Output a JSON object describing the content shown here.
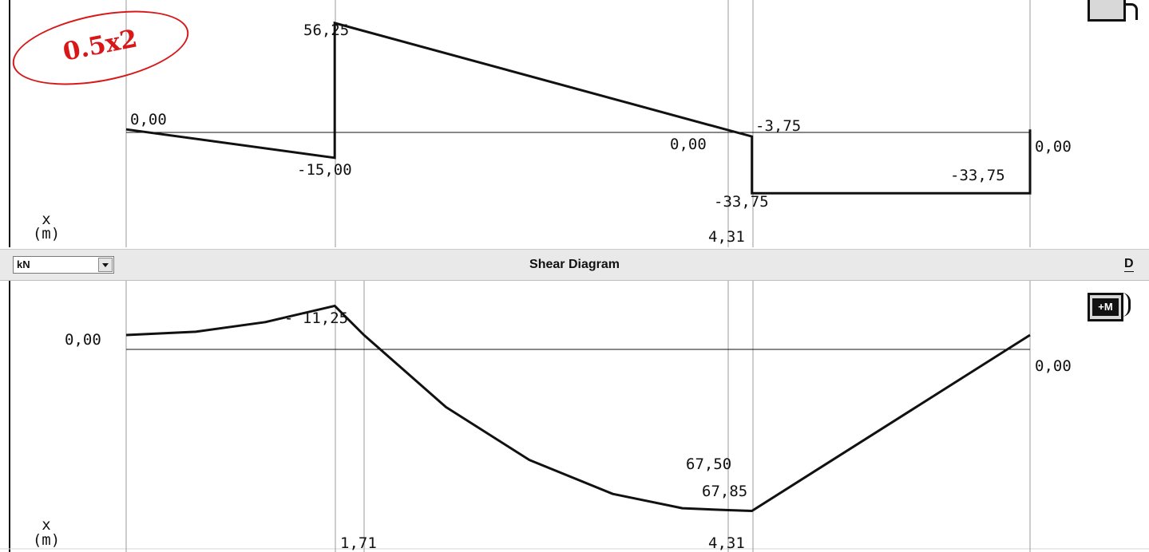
{
  "annotation": {
    "text": "0.5x2",
    "color": "#d81818"
  },
  "toolbar": {
    "unit_value": "kN",
    "dropdown_icon": "chevron-down-icon",
    "title": "Shear Diagram",
    "right_button_label": "D"
  },
  "mode_buttons": {
    "top_icon": "diagram-mode-icon",
    "bottom_label": "+M",
    "bottom_icon": "moment-diagram-icon"
  },
  "top_plot": {
    "axis_label_x": "x",
    "axis_label_unit": "(m)",
    "labels": {
      "left_zero": "0,00",
      "peak": "56,25",
      "dip": "-15,00",
      "cross_zero": "0,00",
      "small_drop": "-3,75",
      "drop_low": "-33,75",
      "right_low": "-33,75",
      "right_zero": "0,00",
      "x_mark": "4,31"
    }
  },
  "bottom_plot": {
    "axis_label_x": "x",
    "axis_label_unit": "(m)",
    "labels": {
      "left_zero": "0,00",
      "peak": "- 11,25",
      "right_zero": "0,00",
      "min_upper": "67,50",
      "min_lower": "67,85",
      "x_mark_1": "1,71",
      "x_mark_2": "4,31"
    }
  },
  "chart_data": [
    {
      "type": "line",
      "points": [
        {
          "x": 0,
          "y": 0
        },
        {
          "x": 1.5,
          "y": -15.0
        },
        {
          "x": 1.5,
          "y": 56.25
        },
        {
          "x": 4.31,
          "y": 0.0
        },
        {
          "x": 4.5,
          "y": -3.75
        },
        {
          "x": 4.5,
          "y": -33.75
        },
        {
          "x": 6.5,
          "y": -33.75
        },
        {
          "x": 6.5,
          "y": 0.0
        }
      ],
      "ylim": [
        -40,
        60
      ]
    },
    {
      "type": "line",
      "title": "Shear Diagram",
      "points": [
        {
          "x": 0,
          "y": 0.0
        },
        {
          "x": 0.5,
          "y": -1.25
        },
        {
          "x": 1.0,
          "y": -5.0
        },
        {
          "x": 1.5,
          "y": -11.25
        },
        {
          "x": 1.71,
          "y": 0.0
        },
        {
          "x": 2.3,
          "y": 27.8
        },
        {
          "x": 2.9,
          "y": 48.2
        },
        {
          "x": 3.5,
          "y": 61.3
        },
        {
          "x": 4.0,
          "y": 66.8
        },
        {
          "x": 4.31,
          "y": 67.5
        },
        {
          "x": 4.5,
          "y": 67.85
        },
        {
          "x": 6.5,
          "y": 0.0
        }
      ],
      "ylim": [
        -20,
        80
      ]
    }
  ]
}
